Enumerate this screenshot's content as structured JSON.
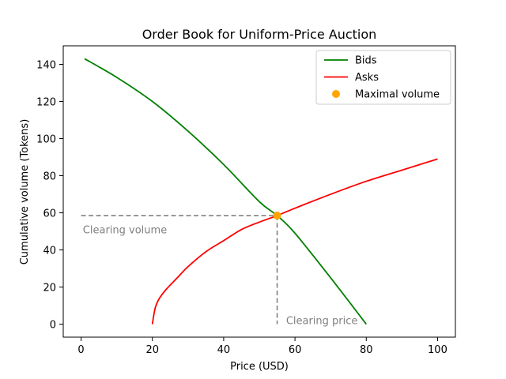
{
  "chart_data": {
    "type": "line",
    "title": "Order Book for Uniform-Price Auction",
    "xlabel": "Price (USD)",
    "ylabel": "Cumulative volume (Tokens)",
    "xlim": [
      -5,
      105
    ],
    "ylim": [
      -7,
      150
    ],
    "x_ticks": [
      0,
      20,
      40,
      60,
      80,
      100
    ],
    "y_ticks": [
      0,
      20,
      40,
      60,
      80,
      100,
      120,
      140
    ],
    "grid": false,
    "legend_position": "upper-right",
    "series": [
      {
        "name": "Bids",
        "color": "#008000",
        "style": "line",
        "x": [
          1,
          10,
          20,
          30,
          40,
          50,
          55,
          60,
          70,
          80
        ],
        "y": [
          143,
          133,
          120,
          104,
          86,
          66,
          58.5,
          49,
          25,
          0
        ]
      },
      {
        "name": "Asks",
        "color": "#ff0000",
        "style": "line",
        "x": [
          20,
          20.5,
          21,
          22,
          24,
          27,
          30,
          35,
          40,
          45,
          50,
          55,
          60,
          70,
          80,
          90,
          100
        ],
        "y": [
          0,
          6,
          10,
          14,
          19,
          25,
          31,
          39,
          45,
          51,
          55,
          58.5,
          62.5,
          70,
          77,
          83,
          89
        ]
      },
      {
        "name": "Maximal volume",
        "color": "#ffa500",
        "style": "point",
        "x": [
          55
        ],
        "y": [
          58.5
        ]
      }
    ],
    "annotations": [
      {
        "text": "Clearing volume",
        "x": 0.5,
        "y": 49
      },
      {
        "text": "Clearing price",
        "x": 57.5,
        "y": 0
      }
    ],
    "reference_lines": {
      "clearing_price": 55,
      "clearing_volume": 58.5,
      "color": "#808080"
    }
  }
}
